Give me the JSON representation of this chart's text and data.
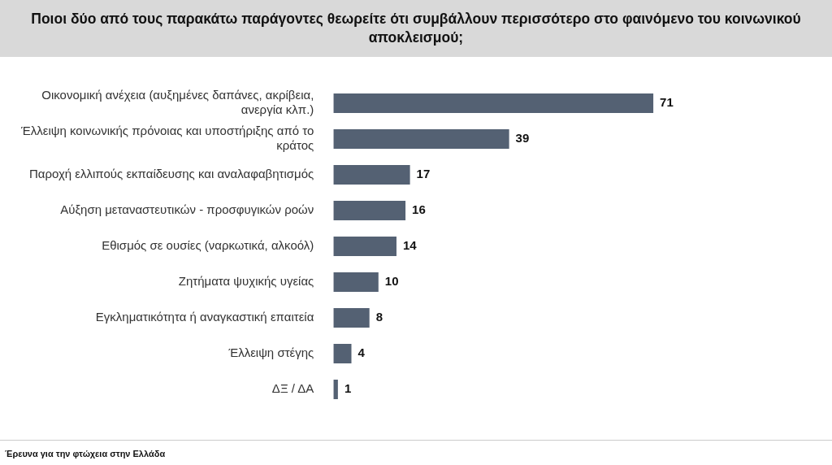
{
  "chart_data": {
    "type": "bar",
    "orientation": "horizontal",
    "title": "Ποιοι δύο από τους παρακάτω παράγοντες θεωρείτε ότι συμβάλλουν περισσότερο στο φαινόμενο του κοινωνικού αποκλεισμού;",
    "categories": [
      "Οικονομική ανέχεια (αυξημένες δαπάνες, ακρίβεια, ανεργία κλπ.)",
      "Έλλειψη κοινωνικής πρόνοιας και υποστήριξης από το κράτος",
      "Παροχή ελλιπούς εκπαίδευσης και αναλαφαβητισμός",
      "Αύξηση μεταναστευτικών - προσφυγικών ροών",
      "Εθισμός σε ουσίες (ναρκωτικά, αλκοόλ)",
      "Ζητήματα ψυχικής υγείας",
      "Εγκληματικότητα ή αναγκαστική επαιτεία",
      "Έλλειψη στέγης",
      "ΔΞ / ΔΑ"
    ],
    "values": [
      71,
      39,
      17,
      16,
      14,
      10,
      8,
      4,
      1
    ],
    "color": "#546173",
    "data_labels": true,
    "legend": false,
    "annotations": [
      "Έρευνα για την φτώχεια στην Ελλάδα"
    ]
  }
}
